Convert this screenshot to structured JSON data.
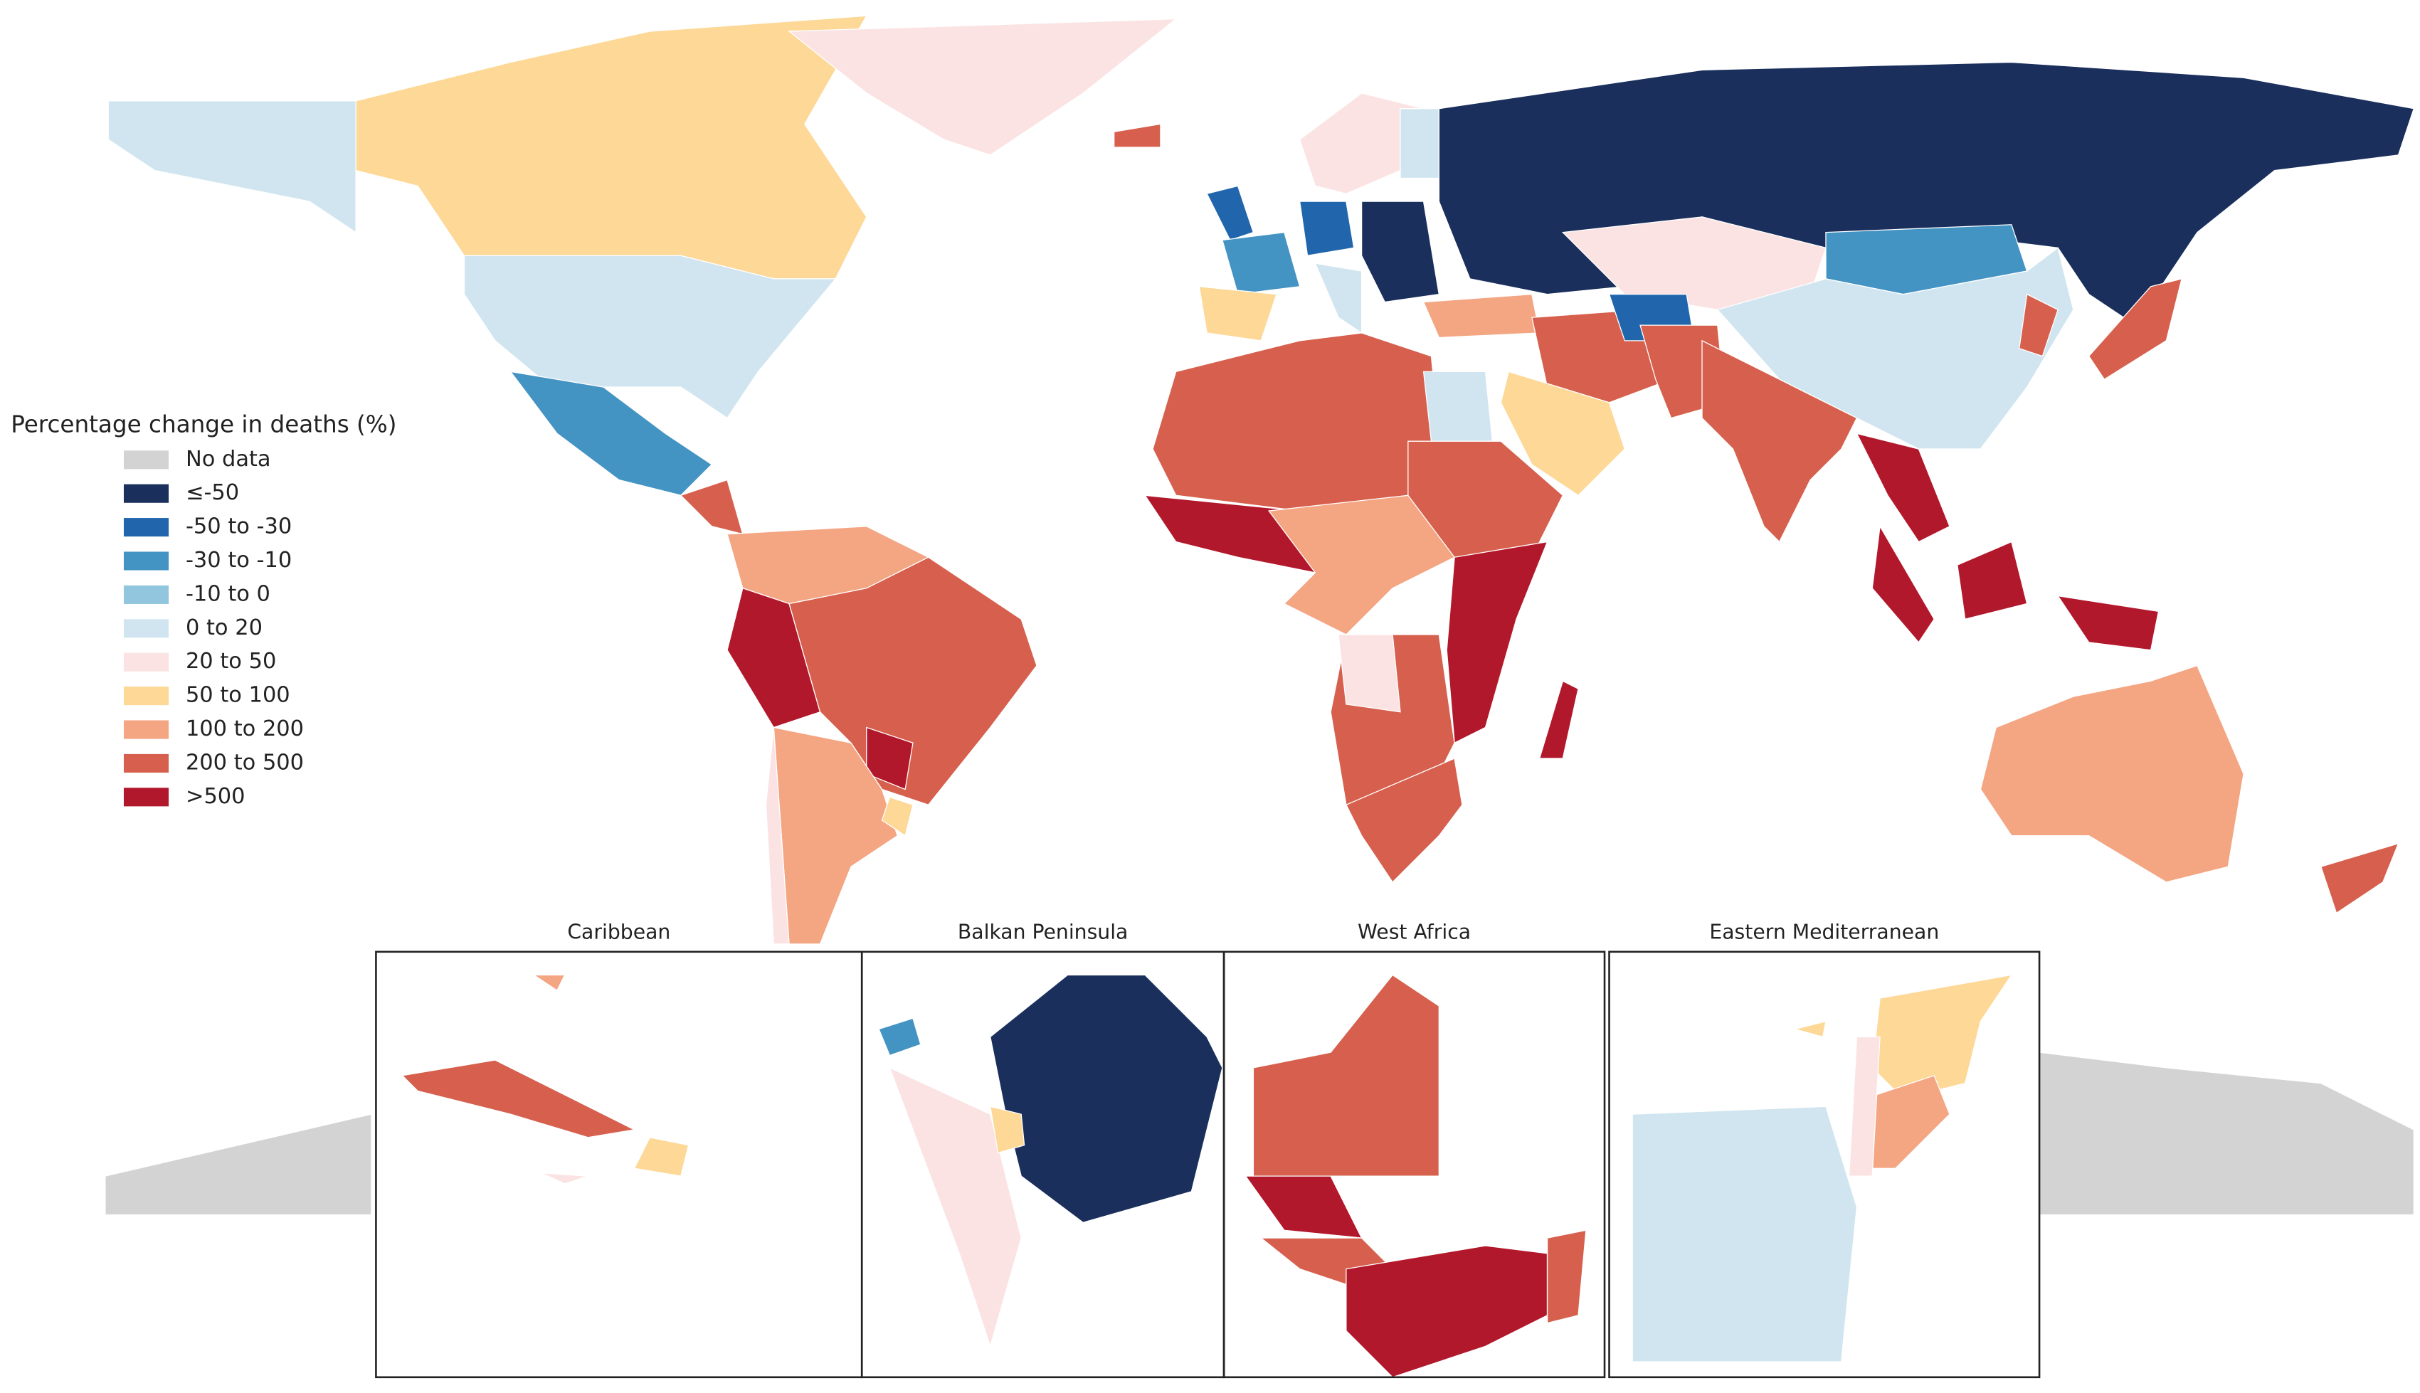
{
  "legend": {
    "title": "Percentage change in deaths (%)",
    "items": [
      {
        "label": "No data",
        "color": "#d3d3d3"
      },
      {
        "label": "≤-50",
        "color": "#1a2f5c"
      },
      {
        "label": "-50 to -30",
        "color": "#2166ac"
      },
      {
        "label": "-30 to -10",
        "color": "#4393c3"
      },
      {
        "label": "-10 to 0",
        "color": "#92c5de"
      },
      {
        "label": "0 to 20",
        "color": "#d1e5f0"
      },
      {
        "label": "20 to 50",
        "color": "#fbe3e3"
      },
      {
        "label": "50 to 100",
        "color": "#fdd896"
      },
      {
        "label": "100 to 200",
        "color": "#f4a582"
      },
      {
        "label": "200 to 500",
        "color": "#d6604d"
      },
      {
        "label": ">500",
        "color": "#b2182b"
      }
    ]
  },
  "insets": [
    "Caribbean",
    "Balkan Peninsula",
    "West Africa",
    "Eastern Mediterranean"
  ]
}
